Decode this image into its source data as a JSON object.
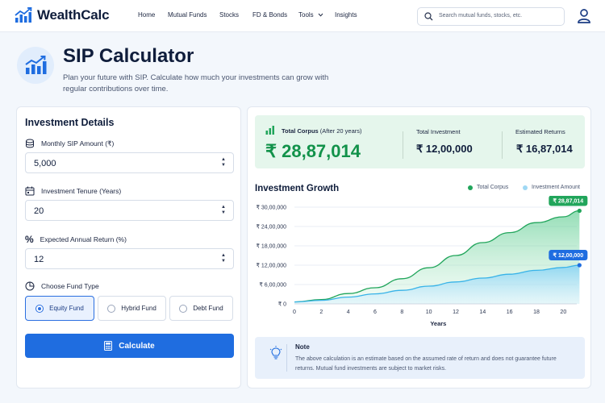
{
  "header": {
    "brand": "WealthCalc",
    "nav": [
      "Home",
      "Mutual Funds",
      "Stocks",
      "FD & Bonds",
      "Tools",
      "Insights"
    ],
    "search_placeholder": "Search mutual funds, stocks, etc."
  },
  "hero": {
    "title": "SIP Calculator",
    "subtitle": "Plan your future with SIP. Calculate how much your investments can grow with regular contributions over time."
  },
  "form": {
    "title": "Investment Details",
    "monthly_label": "Monthly SIP Amount (₹)",
    "monthly_value": "5,000",
    "tenure_label": "Investment Tenure (Years)",
    "tenure_value": "20",
    "return_label": "Expected Annual Return (%)",
    "return_value": "12",
    "fund_type_label": "Choose Fund Type",
    "fund_types": [
      "Equity Fund",
      "Hybrid Fund",
      "Debt Fund"
    ],
    "selected_fund": "Equity Fund",
    "calculate_label": "Calculate"
  },
  "summary": {
    "corpus_label": "Total Corpus",
    "corpus_sub": "(After 20 years)",
    "corpus_value": "₹ 28,87,014",
    "investment_label": "Total Investment",
    "investment_value": "₹ 12,00,000",
    "returns_label": "Estimated Returns",
    "returns_value": "₹ 16,87,014"
  },
  "chart_data": {
    "type": "area",
    "title": "Investment Growth",
    "xlabel": "Years",
    "ylabel": "",
    "x_ticks": [
      0,
      2,
      4,
      6,
      8,
      10,
      12,
      14,
      16,
      18,
      20
    ],
    "y_ticks": [
      "₹ 0",
      "₹ 6,00,000",
      "₹ 12,00,000",
      "₹ 18,00,000",
      "₹ 24,00,000",
      "₹ 30,00,000"
    ],
    "ylim": [
      0,
      3000000
    ],
    "xlim": [
      0,
      21
    ],
    "series": [
      {
        "name": "Total Corpus",
        "color": "#21a55b",
        "x": [
          0,
          2,
          4,
          6,
          8,
          10,
          12,
          14,
          16,
          18,
          20,
          21.2
        ],
        "values": [
          60000,
          135000,
          320000,
          500000,
          780000,
          1120000,
          1500000,
          1900000,
          2210000,
          2520000,
          2700000,
          2887014
        ],
        "end_label": "₹ 28,87,014"
      },
      {
        "name": "Investment Amount",
        "color": "#1f6de0",
        "x": [
          0,
          2,
          4,
          6,
          8,
          10,
          12,
          14,
          16,
          18,
          20,
          21.2
        ],
        "values": [
          60000,
          110000,
          210000,
          310000,
          420000,
          550000,
          680000,
          800000,
          920000,
          1040000,
          1130000,
          1200000
        ],
        "end_label": "₹ 12,00,000"
      }
    ],
    "grid": true,
    "legend": "top-right"
  },
  "note": {
    "title": "Note",
    "body": "The above calculation is an estimate based on the assumed rate of return and does not guarantee future returns. Mutual fund investments are subject to market risks."
  }
}
